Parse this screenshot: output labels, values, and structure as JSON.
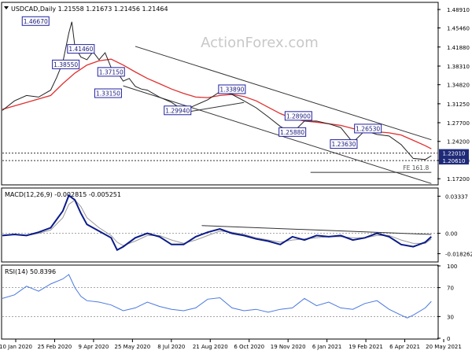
{
  "watermark": "ActionForex.com",
  "colors": {
    "price": "#222222",
    "ma": "#e03030",
    "channel": "#333333",
    "macd": "#0a1a8a",
    "signal": "#9a9a9a",
    "rsi": "#4a78e0",
    "label_border": "#2020a0",
    "fill_label": "#1e2a78"
  },
  "chart_data": [
    {
      "type": "line",
      "title": "USDCAD,Daily  1.21558 1.21673 1.21456 1.21464",
      "x_ticks": [
        "10 Jan 2020",
        "25 Feb 2020",
        "9 Apr 2020",
        "25 May 2020",
        "8 Jul 2020",
        "21 Aug 2020",
        "6 Oct 2020",
        "19 Nov 2020",
        "6 Jan 2021",
        "19 Feb 2021",
        "6 Apr 2021",
        "20 May 2021"
      ],
      "y_ticks": [
        1.4891,
        1.4546,
        1.4188,
        1.3831,
        1.3482,
        1.3125,
        1.277,
        1.242,
        1.2063,
        1.172
      ],
      "y_tick_labels": [
        "1.48910",
        "1.45460",
        "1.41880",
        "1.38310",
        "1.34820",
        "1.31250",
        "1.27700",
        "1.24200",
        "1.20630",
        "1.17200"
      ],
      "ylim": [
        1.162,
        1.501
      ],
      "x_range": [
        0,
        72
      ],
      "series": [
        {
          "x": [
            0,
            2,
            4,
            6,
            8,
            9,
            10,
            11,
            11.5,
            12,
            13,
            14,
            15,
            16,
            17,
            18,
            19,
            20,
            21,
            22,
            23,
            24,
            26,
            28,
            30,
            32,
            34,
            36,
            38,
            40,
            42,
            44,
            46,
            48,
            50,
            52,
            54,
            56,
            58,
            60,
            62,
            64,
            66,
            68,
            70,
            71
          ],
          "values": [
            1.3,
            1.318,
            1.328,
            1.325,
            1.338,
            1.362,
            1.39,
            1.445,
            1.466,
            1.42,
            1.4,
            1.395,
            1.41,
            1.395,
            1.408,
            1.38,
            1.372,
            1.355,
            1.36,
            1.345,
            1.34,
            1.338,
            1.325,
            1.315,
            1.3,
            1.31,
            1.32,
            1.335,
            1.33,
            1.318,
            1.305,
            1.288,
            1.27,
            1.258,
            1.28,
            1.28,
            1.275,
            1.268,
            1.24,
            1.262,
            1.255,
            1.252,
            1.236,
            1.21,
            1.208,
            1.215
          ]
        },
        {
          "x": [
            0,
            4,
            8,
            10,
            12,
            14,
            16,
            18,
            20,
            22,
            24,
            26,
            28,
            30,
            32,
            34,
            36,
            38,
            40,
            42,
            44,
            46,
            48,
            50,
            52,
            54,
            56,
            58,
            60,
            62,
            64,
            66,
            68,
            70,
            71
          ],
          "values": [
            1.302,
            1.315,
            1.328,
            1.35,
            1.37,
            1.385,
            1.393,
            1.396,
            1.385,
            1.372,
            1.36,
            1.35,
            1.34,
            1.332,
            1.325,
            1.324,
            1.328,
            1.33,
            1.326,
            1.318,
            1.306,
            1.294,
            1.285,
            1.28,
            1.278,
            1.275,
            1.272,
            1.266,
            1.262,
            1.26,
            1.258,
            1.254,
            1.244,
            1.234,
            1.228
          ]
        }
      ],
      "channel_lines": [
        {
          "x": [
            22,
            71
          ],
          "values": [
            1.42,
            1.245
          ]
        },
        {
          "x": [
            20,
            71
          ],
          "values": [
            1.346,
            1.163
          ]
        },
        {
          "x": [
            30,
            40
          ],
          "values": [
            1.296,
            1.315
          ]
        }
      ],
      "hlines": [
        1.2201,
        1.2061
      ],
      "fe_line": {
        "x": [
          51,
          71
        ],
        "value": 1.184
      },
      "labels": [
        {
          "text": "1.46670",
          "x": 5.5,
          "y": 1.4667
        },
        {
          "text": "1.38550",
          "x": 10.5,
          "y": 1.3855
        },
        {
          "text": "1.41460",
          "x": 13,
          "y": 1.4146
        },
        {
          "text": "1.37150",
          "x": 18,
          "y": 1.3715
        },
        {
          "text": "1.33150",
          "x": 17.5,
          "y": 1.3315
        },
        {
          "text": "1.29940",
          "x": 29,
          "y": 1.2994
        },
        {
          "text": "1.33890",
          "x": 38,
          "y": 1.3389
        },
        {
          "text": "1.28900",
          "x": 49,
          "y": 1.289
        },
        {
          "text": "1.25880",
          "x": 48,
          "y": 1.2588
        },
        {
          "text": "1.23630",
          "x": 56.5,
          "y": 1.2363
        },
        {
          "text": "1.26530",
          "x": 60.5,
          "y": 1.2653
        }
      ],
      "right_labels": [
        "1.22010",
        "1.20610"
      ],
      "fe_text": "FE 161.8"
    },
    {
      "type": "line",
      "title": "MACD(12,26,9) -0.002815 -0.005251",
      "y_ticks": [
        0.03337,
        0.0,
        -0.018262
      ],
      "y_tick_labels": [
        "0.03337",
        "0.00",
        "-0.018262"
      ],
      "ylim": [
        -0.025,
        0.04
      ],
      "series": [
        {
          "x": [
            0,
            2,
            4,
            6,
            8,
            10,
            11,
            12,
            13,
            14,
            16,
            18,
            19,
            20,
            22,
            24,
            26,
            28,
            30,
            32,
            34,
            36,
            38,
            40,
            42,
            44,
            46,
            48,
            50,
            52,
            54,
            56,
            58,
            60,
            62,
            64,
            66,
            68,
            70,
            71
          ],
          "values": [
            -0.002,
            -0.001,
            -0.002,
            0.001,
            0.005,
            0.02,
            0.034,
            0.03,
            0.018,
            0.008,
            0.002,
            -0.004,
            -0.015,
            -0.012,
            -0.004,
            0.0,
            -0.003,
            -0.01,
            -0.01,
            -0.003,
            0.001,
            0.004,
            0.0,
            -0.002,
            -0.005,
            -0.007,
            -0.01,
            -0.003,
            -0.006,
            -0.002,
            -0.003,
            -0.002,
            -0.006,
            -0.004,
            0.0,
            -0.003,
            -0.01,
            -0.012,
            -0.008,
            -0.003
          ]
        },
        {
          "x": [
            0,
            2,
            4,
            6,
            8,
            10,
            11,
            12,
            13,
            14,
            16,
            18,
            19,
            20,
            22,
            24,
            26,
            28,
            30,
            32,
            34,
            36,
            38,
            40,
            42,
            44,
            46,
            48,
            50,
            52,
            54,
            56,
            58,
            60,
            62,
            64,
            66,
            68,
            70,
            71
          ],
          "values": [
            -0.002,
            -0.001,
            -0.002,
            0.0,
            0.003,
            0.014,
            0.026,
            0.03,
            0.024,
            0.014,
            0.005,
            -0.002,
            -0.008,
            -0.011,
            -0.007,
            -0.002,
            -0.002,
            -0.006,
            -0.009,
            -0.006,
            -0.002,
            0.002,
            0.001,
            -0.001,
            -0.004,
            -0.006,
            -0.008,
            -0.006,
            -0.005,
            -0.004,
            -0.003,
            -0.003,
            -0.004,
            -0.004,
            -0.002,
            -0.002,
            -0.006,
            -0.009,
            -0.009,
            -0.005
          ]
        }
      ],
      "trend_line": {
        "x": [
          33,
          71
        ],
        "values": [
          0.007,
          -0.001
        ]
      }
    },
    {
      "type": "line",
      "title": "RSI(14) 50.8396",
      "y_ticks": [
        100,
        70,
        30,
        0
      ],
      "ylim": [
        0,
        100
      ],
      "series": [
        {
          "x": [
            0,
            2,
            4,
            6,
            8,
            10,
            11,
            12,
            13,
            14,
            16,
            18,
            20,
            22,
            24,
            26,
            28,
            30,
            32,
            34,
            36,
            38,
            40,
            42,
            44,
            46,
            48,
            50,
            52,
            54,
            56,
            58,
            60,
            62,
            64,
            66,
            67,
            68,
            70,
            71
          ],
          "values": [
            55,
            60,
            72,
            65,
            75,
            82,
            88,
            70,
            58,
            52,
            50,
            46,
            38,
            42,
            50,
            44,
            40,
            38,
            42,
            54,
            56,
            42,
            38,
            40,
            36,
            40,
            42,
            55,
            45,
            50,
            42,
            40,
            48,
            52,
            40,
            32,
            28,
            32,
            42,
            51
          ]
        }
      ]
    }
  ]
}
